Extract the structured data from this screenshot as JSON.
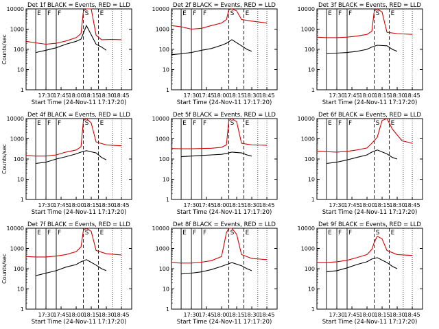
{
  "chart_data": [
    {
      "type": "line",
      "title": "Det 1f BLACK = Events, RED = LLD",
      "xlabel": "Start Time (24-Nov-11 17:17:20)",
      "ylabel": "Counts/sec",
      "series": [
        {
          "name": "Events",
          "values": [
            [
              17.33,
              70
            ],
            [
              17.5,
              90
            ],
            [
              17.67,
              120
            ],
            [
              17.83,
              180
            ],
            [
              18.0,
              250
            ],
            [
              18.08,
              320
            ],
            [
              18.17,
              1500
            ],
            [
              18.33,
              180
            ],
            [
              18.42,
              130
            ],
            [
              18.5,
              90
            ]
          ]
        },
        {
          "name": "LLD",
          "values": [
            [
              17.17,
              250
            ],
            [
              17.33,
              210
            ],
            [
              17.5,
              180
            ],
            [
              17.67,
              200
            ],
            [
              17.83,
              260
            ],
            [
              18.0,
              380
            ],
            [
              18.08,
              600
            ],
            [
              18.12,
              8000
            ],
            [
              18.17,
              10000
            ],
            [
              18.25,
              10000
            ],
            [
              18.33,
              500
            ],
            [
              18.42,
              300
            ],
            [
              18.58,
              310
            ],
            [
              18.75,
              300
            ]
          ]
        }
      ]
    },
    {
      "type": "line",
      "title": "Det 2f BLACK = Events, RED = LLD",
      "xlabel": "Start Time (24-Nov-11 17:17:20)",
      "ylabel": "",
      "series": [
        {
          "name": "Events",
          "values": [
            [
              17.17,
              55
            ],
            [
              17.33,
              60
            ],
            [
              17.5,
              70
            ],
            [
              17.67,
              90
            ],
            [
              17.83,
              110
            ],
            [
              18.0,
              160
            ],
            [
              18.08,
              200
            ],
            [
              18.17,
              300
            ],
            [
              18.33,
              150
            ],
            [
              18.42,
              100
            ],
            [
              18.5,
              80
            ]
          ]
        },
        {
          "name": "LLD",
          "values": [
            [
              17.17,
              1500
            ],
            [
              17.33,
              1300
            ],
            [
              17.5,
              1000
            ],
            [
              17.67,
              1100
            ],
            [
              17.83,
              1500
            ],
            [
              18.0,
              2000
            ],
            [
              18.08,
              3000
            ],
            [
              18.12,
              9000
            ],
            [
              18.17,
              10000
            ],
            [
              18.25,
              8000
            ],
            [
              18.33,
              3000
            ],
            [
              18.5,
              2500
            ],
            [
              18.75,
              2000
            ]
          ]
        }
      ]
    },
    {
      "type": "line",
      "title": "Det 3f BLACK = Events, RED = LLD",
      "xlabel": "Start Time (24-Nov-11 17:17:20)",
      "ylabel": "",
      "series": [
        {
          "name": "Events",
          "values": [
            [
              17.33,
              60
            ],
            [
              17.5,
              65
            ],
            [
              17.67,
              70
            ],
            [
              17.83,
              80
            ],
            [
              18.0,
              100
            ],
            [
              18.08,
              130
            ],
            [
              18.17,
              160
            ],
            [
              18.33,
              150
            ],
            [
              18.42,
              100
            ],
            [
              18.5,
              80
            ]
          ]
        },
        {
          "name": "LLD",
          "values": [
            [
              17.17,
              400
            ],
            [
              17.33,
              380
            ],
            [
              17.5,
              380
            ],
            [
              17.67,
              400
            ],
            [
              17.83,
              450
            ],
            [
              18.0,
              550
            ],
            [
              18.08,
              800
            ],
            [
              18.12,
              8000
            ],
            [
              18.17,
              10000
            ],
            [
              18.25,
              7000
            ],
            [
              18.33,
              700
            ],
            [
              18.5,
              600
            ],
            [
              18.75,
              550
            ]
          ]
        }
      ]
    },
    {
      "type": "line",
      "title": "Det 4f BLACK = Events, RED = LLD",
      "xlabel": "Start Time (24-Nov-11 17:17:20)",
      "ylabel": "Counts/sec",
      "series": [
        {
          "name": "Events",
          "values": [
            [
              17.33,
              60
            ],
            [
              17.5,
              70
            ],
            [
              17.67,
              100
            ],
            [
              17.83,
              130
            ],
            [
              18.0,
              180
            ],
            [
              18.08,
              220
            ],
            [
              18.17,
              260
            ],
            [
              18.33,
              200
            ],
            [
              18.42,
              120
            ],
            [
              18.5,
              90
            ]
          ]
        },
        {
          "name": "LLD",
          "values": [
            [
              17.17,
              150
            ],
            [
              17.33,
              140
            ],
            [
              17.5,
              140
            ],
            [
              17.67,
              160
            ],
            [
              17.83,
              220
            ],
            [
              18.0,
              280
            ],
            [
              18.08,
              400
            ],
            [
              18.12,
              8000
            ],
            [
              18.17,
              10000
            ],
            [
              18.25,
              6000
            ],
            [
              18.33,
              700
            ],
            [
              18.5,
              500
            ],
            [
              18.75,
              450
            ]
          ]
        }
      ]
    },
    {
      "type": "line",
      "title": "Det 5f BLACK = Events, RED = LLD",
      "xlabel": "Start Time (24-Nov-11 17:17:20)",
      "ylabel": "",
      "series": [
        {
          "name": "Events",
          "values": [
            [
              17.33,
              130
            ],
            [
              17.5,
              140
            ],
            [
              17.67,
              150
            ],
            [
              17.83,
              160
            ],
            [
              18.0,
              170
            ],
            [
              18.08,
              190
            ],
            [
              18.17,
              220
            ],
            [
              18.33,
              200
            ],
            [
              18.42,
              160
            ],
            [
              18.5,
              140
            ]
          ]
        },
        {
          "name": "LLD",
          "values": [
            [
              17.17,
              330
            ],
            [
              17.33,
              320
            ],
            [
              17.5,
              320
            ],
            [
              17.67,
              330
            ],
            [
              17.83,
              340
            ],
            [
              18.0,
              380
            ],
            [
              18.08,
              500
            ],
            [
              18.12,
              8000
            ],
            [
              18.17,
              10000
            ],
            [
              18.25,
              7000
            ],
            [
              18.33,
              600
            ],
            [
              18.5,
              500
            ],
            [
              18.75,
              480
            ]
          ]
        }
      ]
    },
    {
      "type": "line",
      "title": "Det 6f BLACK = Events, RED = LLD",
      "xlabel": "Start Time (24-Nov-11 17:17:20)",
      "ylabel": "",
      "series": [
        {
          "name": "Events",
          "values": [
            [
              17.33,
              60
            ],
            [
              17.5,
              70
            ],
            [
              17.67,
              90
            ],
            [
              17.83,
              120
            ],
            [
              18.0,
              160
            ],
            [
              18.08,
              220
            ],
            [
              18.17,
              280
            ],
            [
              18.33,
              180
            ],
            [
              18.42,
              120
            ],
            [
              18.5,
              100
            ]
          ]
        },
        {
          "name": "LLD",
          "values": [
            [
              17.17,
              250
            ],
            [
              17.33,
              230
            ],
            [
              17.5,
              220
            ],
            [
              17.67,
              240
            ],
            [
              17.83,
              280
            ],
            [
              18.0,
              350
            ],
            [
              18.08,
              600
            ],
            [
              18.17,
              1200
            ],
            [
              18.25,
              8000
            ],
            [
              18.33,
              10000
            ],
            [
              18.42,
              3000
            ],
            [
              18.58,
              800
            ],
            [
              18.75,
              600
            ]
          ]
        }
      ]
    },
    {
      "type": "line",
      "title": "Det 7f BLACK = Events, RED = LLD",
      "xlabel": "Start Time (24-Nov-11 17:17:20)",
      "ylabel": "Counts/sec",
      "series": [
        {
          "name": "Events",
          "values": [
            [
              17.33,
              45
            ],
            [
              17.5,
              60
            ],
            [
              17.67,
              80
            ],
            [
              17.83,
              120
            ],
            [
              18.0,
              160
            ],
            [
              18.08,
              220
            ],
            [
              18.17,
              280
            ],
            [
              18.33,
              150
            ],
            [
              18.42,
              100
            ],
            [
              18.5,
              80
            ]
          ]
        },
        {
          "name": "LLD",
          "values": [
            [
              17.17,
              400
            ],
            [
              17.33,
              380
            ],
            [
              17.5,
              380
            ],
            [
              17.67,
              420
            ],
            [
              17.83,
              500
            ],
            [
              18.0,
              700
            ],
            [
              18.08,
              1200
            ],
            [
              18.12,
              8000
            ],
            [
              18.17,
              10000
            ],
            [
              18.25,
              7000
            ],
            [
              18.33,
              800
            ],
            [
              18.5,
              550
            ],
            [
              18.75,
              480
            ]
          ]
        }
      ]
    },
    {
      "type": "line",
      "title": "Det 8f BLACK = Events, RED = LLD",
      "xlabel": "Start Time (24-Nov-11 17:17:20)",
      "ylabel": "",
      "series": [
        {
          "name": "Events",
          "values": [
            [
              17.33,
              55
            ],
            [
              17.5,
              60
            ],
            [
              17.67,
              70
            ],
            [
              17.83,
              90
            ],
            [
              18.0,
              130
            ],
            [
              18.08,
              160
            ],
            [
              18.17,
              200
            ],
            [
              18.33,
              140
            ],
            [
              18.42,
              100
            ],
            [
              18.5,
              80
            ]
          ]
        },
        {
          "name": "LLD",
          "values": [
            [
              17.17,
              200
            ],
            [
              17.33,
              190
            ],
            [
              17.5,
              190
            ],
            [
              17.67,
              210
            ],
            [
              17.83,
              250
            ],
            [
              18.0,
              400
            ],
            [
              18.08,
              6000
            ],
            [
              18.12,
              10000
            ],
            [
              18.17,
              10000
            ],
            [
              18.25,
              5000
            ],
            [
              18.33,
              500
            ],
            [
              18.5,
              320
            ],
            [
              18.75,
              280
            ]
          ]
        }
      ]
    },
    {
      "type": "line",
      "title": "Det 9f BLACK = Events, RED = LLD",
      "xlabel": "Start Time (24-Nov-11 17:17:20)",
      "ylabel": "",
      "series": [
        {
          "name": "Events",
          "values": [
            [
              17.33,
              70
            ],
            [
              17.5,
              80
            ],
            [
              17.67,
              110
            ],
            [
              17.83,
              160
            ],
            [
              18.0,
              220
            ],
            [
              18.08,
              300
            ],
            [
              18.17,
              350
            ],
            [
              18.33,
              200
            ],
            [
              18.42,
              130
            ],
            [
              18.5,
              100
            ]
          ]
        },
        {
          "name": "LLD",
          "values": [
            [
              17.17,
              200
            ],
            [
              17.33,
              200
            ],
            [
              17.5,
              220
            ],
            [
              17.67,
              260
            ],
            [
              17.83,
              350
            ],
            [
              18.0,
              500
            ],
            [
              18.08,
              900
            ],
            [
              18.12,
              2000
            ],
            [
              18.17,
              4000
            ],
            [
              18.25,
              3000
            ],
            [
              18.33,
              800
            ],
            [
              18.5,
              500
            ],
            [
              18.75,
              450
            ]
          ]
        }
      ]
    }
  ],
  "shared": {
    "xticks": [
      "17:30",
      "17:45",
      "18:00",
      "18:15",
      "18:30",
      "18:45"
    ],
    "yticks": [
      "1",
      "10",
      "100",
      "1000",
      "10000"
    ],
    "markers": [
      "E",
      "F",
      "F",
      "S",
      "E"
    ],
    "colors": {
      "events": "#000000",
      "lld": "#d40000"
    }
  }
}
